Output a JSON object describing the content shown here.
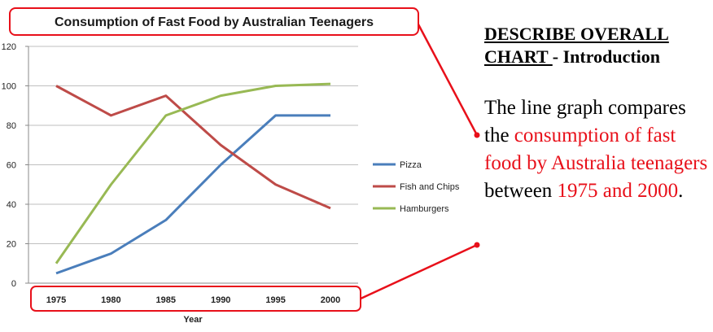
{
  "chart_data": {
    "type": "line",
    "title": "Consumption of Fast Food by Australian Teenagers",
    "xlabel": "Year",
    "ylabel": "",
    "x": [
      1975,
      1980,
      1985,
      1990,
      1995,
      2000
    ],
    "ylim": [
      0,
      120
    ],
    "yticks": [
      0,
      20,
      40,
      60,
      80,
      100,
      120
    ],
    "grid": true,
    "legend": "right",
    "series": [
      {
        "name": "Pizza",
        "color": "#4a7ebb",
        "values": [
          5,
          15,
          32,
          60,
          85,
          85
        ]
      },
      {
        "name": "Fish and Chips",
        "color": "#be4b48",
        "values": [
          100,
          85,
          95,
          70,
          50,
          38
        ]
      },
      {
        "name": "Hamburgers",
        "color": "#98b954",
        "values": [
          10,
          50,
          85,
          95,
          100,
          101
        ]
      }
    ]
  },
  "annotation": {
    "heading_underlined": "DESCRIBE OVERALL CHART ",
    "heading_rest": "- Introduction",
    "text_1": "The line graph compares the ",
    "text_highlight_1": "consumption of fast food by Australia teenagers",
    "text_2": " between ",
    "text_highlight_2": "1975 and 2000",
    "text_3": ".",
    "highlight_color": "#e8101a"
  }
}
